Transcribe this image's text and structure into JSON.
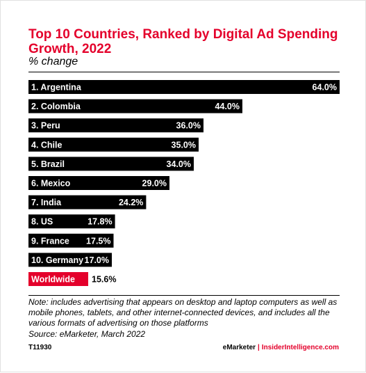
{
  "chart_data": {
    "type": "bar",
    "orientation": "horizontal",
    "title": "Top 10 Countries, Ranked by Digital Ad Spending Growth, 2022",
    "subtitle": "% change",
    "categories": [
      "1. Argentina",
      "2. Colombia",
      "3. Peru",
      "4. Chile",
      "5. Brazil",
      "6. Mexico",
      "7. India",
      "8. US",
      "9. France",
      "10. Germany",
      "Worldwide"
    ],
    "values": [
      64.0,
      44.0,
      36.0,
      35.0,
      34.0,
      29.0,
      24.2,
      17.8,
      17.5,
      17.0,
      15.6
    ],
    "value_labels": [
      "64.0%",
      "44.0%",
      "36.0%",
      "35.0%",
      "34.0%",
      "29.0%",
      "24.2%",
      "17.8%",
      "17.5%",
      "17.0%",
      "15.6%"
    ],
    "bar_color": "#000000",
    "highlight_color": "#e4002b",
    "highlight_category": "Worldwide",
    "xlim": [
      0,
      64
    ],
    "grid": false
  },
  "footer": {
    "note": "Note: includes advertising that appears on desktop and laptop computers as well as mobile phones, tablets, and other internet-connected devices, and includes all the various formats of advertising on those platforms",
    "source": "Source: eMarketer, March 2022",
    "code": "T11930",
    "brand_primary": "eMarketer",
    "brand_separator": "|",
    "brand_secondary": "InsiderIntelligence.com"
  }
}
